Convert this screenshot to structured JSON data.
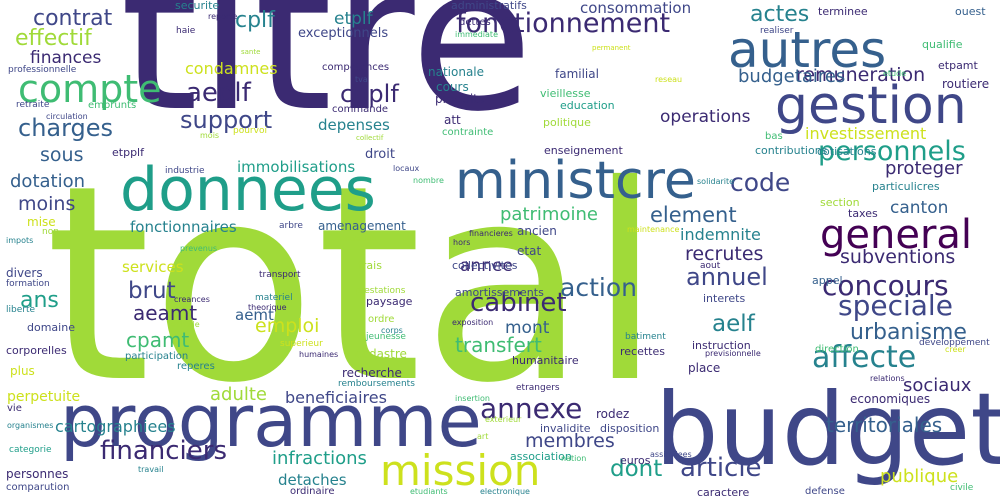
{
  "colors": {
    "background": "#ffffff",
    "green": "#7ad151",
    "purple": "#440154",
    "indigo": "#3b2a72",
    "navy": "#3f4788",
    "blue": "#35608d",
    "teal": "#26828e",
    "seagreen": "#1f9e89",
    "mint": "#3fbc73",
    "yellow": "#cde11d",
    "lime": "#a0da39"
  },
  "words": [
    {
      "text": "total",
      "color": "lime"
    },
    {
      "text": "titre",
      "color": "indigo"
    },
    {
      "text": "budget",
      "color": "navy"
    },
    {
      "text": "programme",
      "color": "navy"
    },
    {
      "text": "donnees",
      "color": "seagreen"
    },
    {
      "text": "gestion",
      "color": "navy"
    },
    {
      "text": "autres",
      "color": "blue"
    },
    {
      "text": "ministcre",
      "color": "blue"
    },
    {
      "text": "mission",
      "color": "yellow"
    },
    {
      "text": "compte",
      "color": "mint"
    },
    {
      "text": "general",
      "color": "purple"
    },
    {
      "text": "concours",
      "color": "indigo"
    },
    {
      "text": "speciale",
      "color": "navy"
    },
    {
      "text": "affecte",
      "color": "teal"
    },
    {
      "text": "annexe",
      "color": "indigo"
    },
    {
      "text": "article",
      "color": "navy"
    },
    {
      "text": "financiers",
      "color": "indigo"
    },
    {
      "text": "fonctionnement",
      "color": "indigo"
    },
    {
      "text": "personnels",
      "color": "seagreen"
    },
    {
      "text": "code",
      "color": "navy"
    },
    {
      "text": "cabinet",
      "color": "indigo"
    },
    {
      "text": "annuel",
      "color": "navy"
    },
    {
      "text": "action",
      "color": "blue"
    },
    {
      "text": "urbanisme",
      "color": "blue"
    },
    {
      "text": "charges",
      "color": "blue"
    },
    {
      "text": "aeplf",
      "color": "indigo"
    },
    {
      "text": "cpplf",
      "color": "indigo"
    },
    {
      "text": "support",
      "color": "navy"
    },
    {
      "text": "contrat",
      "color": "navy"
    },
    {
      "text": "effectif",
      "color": "lime"
    },
    {
      "text": "cplf",
      "color": "teal"
    },
    {
      "text": "etplf",
      "color": "teal"
    },
    {
      "text": "actes",
      "color": "teal"
    },
    {
      "text": "remuneration",
      "color": "indigo"
    },
    {
      "text": "budgetaires",
      "color": "blue"
    },
    {
      "text": "finances",
      "color": "indigo"
    },
    {
      "text": "sous",
      "color": "blue"
    },
    {
      "text": "moins",
      "color": "navy"
    },
    {
      "text": "dotation",
      "color": "blue"
    },
    {
      "text": "ans",
      "color": "seagreen"
    },
    {
      "text": "brut",
      "color": "navy"
    },
    {
      "text": "aeamt",
      "color": "indigo"
    },
    {
      "text": "cpamt",
      "color": "mint"
    },
    {
      "text": "emploi",
      "color": "yellow"
    },
    {
      "text": "aelf",
      "color": "teal"
    },
    {
      "text": "membres",
      "color": "navy"
    },
    {
      "text": "dont",
      "color": "seagreen"
    },
    {
      "text": "transfert",
      "color": "mint"
    },
    {
      "text": "mont",
      "color": "blue"
    },
    {
      "text": "patrimoine",
      "color": "mint"
    },
    {
      "text": "element",
      "color": "blue"
    },
    {
      "text": "canton",
      "color": "blue"
    },
    {
      "text": "subventions",
      "color": "indigo"
    },
    {
      "text": "recrutes",
      "color": "indigo"
    },
    {
      "text": "indemnite",
      "color": "teal"
    },
    {
      "text": "annee",
      "color": "indigo"
    },
    {
      "text": "proteger",
      "color": "indigo"
    },
    {
      "text": "sociaux",
      "color": "indigo"
    },
    {
      "text": "territoriales",
      "color": "blue"
    },
    {
      "text": "infractions",
      "color": "seagreen"
    },
    {
      "text": "publique",
      "color": "yellow"
    },
    {
      "text": "beneficiaires",
      "color": "navy"
    },
    {
      "text": "adulte",
      "color": "lime"
    },
    {
      "text": "cartographiees",
      "color": "teal"
    },
    {
      "text": "condamnes",
      "color": "yellow"
    },
    {
      "text": "immobilisations",
      "color": "seagreen"
    },
    {
      "text": "investissement",
      "color": "yellow"
    },
    {
      "text": "operations",
      "color": "indigo"
    },
    {
      "text": "consommation",
      "color": "navy"
    },
    {
      "text": "depenses",
      "color": "teal"
    },
    {
      "text": "fonctionnaires",
      "color": "teal"
    },
    {
      "text": "services",
      "color": "yellow"
    },
    {
      "text": "detaches",
      "color": "teal"
    },
    {
      "text": "exceptionnels",
      "color": "navy"
    },
    {
      "text": "securite",
      "color": "teal"
    },
    {
      "text": "administratifs",
      "color": "navy"
    },
    {
      "text": "terminee",
      "color": "indigo"
    },
    {
      "text": "ouest",
      "color": "blue"
    },
    {
      "text": "etpamt",
      "color": "indigo"
    },
    {
      "text": "routiere",
      "color": "indigo"
    },
    {
      "text": "qualifie",
      "color": "mint"
    },
    {
      "text": "particulicres",
      "color": "teal"
    },
    {
      "text": "cotisations",
      "color": "teal"
    },
    {
      "text": "contributions",
      "color": "teal"
    },
    {
      "text": "section",
      "color": "lime"
    },
    {
      "text": "taxes",
      "color": "indigo"
    },
    {
      "text": "appel",
      "color": "blue"
    },
    {
      "text": "interets",
      "color": "navy"
    },
    {
      "text": "instruction",
      "color": "indigo"
    },
    {
      "text": "recettes",
      "color": "indigo"
    },
    {
      "text": "place",
      "color": "indigo"
    },
    {
      "text": "economiques",
      "color": "indigo"
    },
    {
      "text": "direction",
      "color": "mint"
    },
    {
      "text": "developpement",
      "color": "navy"
    },
    {
      "text": "rodez",
      "color": "indigo"
    },
    {
      "text": "disposition",
      "color": "navy"
    },
    {
      "text": "invalidite",
      "color": "navy"
    },
    {
      "text": "humanitaire",
      "color": "indigo"
    },
    {
      "text": "association",
      "color": "seagreen"
    },
    {
      "text": "euros",
      "color": "indigo"
    },
    {
      "text": "caractere",
      "color": "indigo"
    },
    {
      "text": "defense",
      "color": "navy"
    },
    {
      "text": "civile",
      "color": "mint"
    },
    {
      "text": "cadastre",
      "color": "lime"
    },
    {
      "text": "recherche",
      "color": "indigo"
    },
    {
      "text": "paysage",
      "color": "indigo"
    },
    {
      "text": "frais",
      "color": "lime"
    },
    {
      "text": "collectivites",
      "color": "navy"
    },
    {
      "text": "amortissements",
      "color": "navy"
    },
    {
      "text": "etat",
      "color": "navy"
    },
    {
      "text": "ancien",
      "color": "navy"
    },
    {
      "text": "enseignement",
      "color": "indigo"
    },
    {
      "text": "politique",
      "color": "lime"
    },
    {
      "text": "education",
      "color": "seagreen"
    },
    {
      "text": "vieillesse",
      "color": "mint"
    },
    {
      "text": "familial",
      "color": "navy"
    },
    {
      "text": "produits",
      "color": "indigo"
    },
    {
      "text": "cours",
      "color": "teal"
    },
    {
      "text": "nationale",
      "color": "teal"
    },
    {
      "text": "att",
      "color": "indigo"
    },
    {
      "text": "contrainte",
      "color": "mint"
    },
    {
      "text": "competences",
      "color": "indigo"
    },
    {
      "text": "commande",
      "color": "indigo"
    },
    {
      "text": "droit",
      "color": "navy"
    },
    {
      "text": "aemt",
      "color": "blue"
    },
    {
      "text": "amenagement",
      "color": "blue"
    },
    {
      "text": "etpplf",
      "color": "indigo"
    },
    {
      "text": "divers",
      "color": "navy"
    },
    {
      "text": "formation",
      "color": "navy"
    },
    {
      "text": "domaine",
      "color": "navy"
    },
    {
      "text": "corporelles",
      "color": "indigo"
    },
    {
      "text": "plus",
      "color": "yellow"
    },
    {
      "text": "perpetuite",
      "color": "yellow"
    },
    {
      "text": "vie",
      "color": "indigo"
    },
    {
      "text": "categorie",
      "color": "seagreen"
    },
    {
      "text": "personnes",
      "color": "indigo"
    },
    {
      "text": "comparution",
      "color": "navy"
    },
    {
      "text": "ordinaire",
      "color": "indigo"
    },
    {
      "text": "emprunts",
      "color": "mint"
    },
    {
      "text": "retraite",
      "color": "navy"
    },
    {
      "text": "professionnelle",
      "color": "navy"
    },
    {
      "text": "haie",
      "color": "indigo"
    },
    {
      "text": "reporte",
      "color": "indigo"
    },
    {
      "text": "dettes",
      "color": "indigo"
    },
    {
      "text": "immediate",
      "color": "mint"
    },
    {
      "text": "realiser",
      "color": "navy"
    },
    {
      "text": "sante",
      "color": "lime"
    },
    {
      "text": "permanent",
      "color": "yellow"
    },
    {
      "text": "tva",
      "color": "navy"
    },
    {
      "text": "reseau",
      "color": "yellow"
    },
    {
      "text": "etude",
      "color": "mint"
    },
    {
      "text": "circulation",
      "color": "navy"
    },
    {
      "text": "mois",
      "color": "lime"
    },
    {
      "text": "pourvoi",
      "color": "yellow"
    },
    {
      "text": "collectif",
      "color": "lime"
    },
    {
      "text": "bas",
      "color": "mint"
    },
    {
      "text": "solidarite",
      "color": "teal"
    },
    {
      "text": "industrie",
      "color": "navy"
    },
    {
      "text": "locaux",
      "color": "navy"
    },
    {
      "text": "nombre",
      "color": "mint"
    },
    {
      "text": "mise",
      "color": "yellow"
    },
    {
      "text": "non",
      "color": "lime"
    },
    {
      "text": "impots",
      "color": "teal"
    },
    {
      "text": "arbre",
      "color": "navy"
    },
    {
      "text": "prevenus",
      "color": "mint"
    },
    {
      "text": "entretien",
      "color": "lime"
    },
    {
      "text": "financieres",
      "color": "indigo"
    },
    {
      "text": "maintenance",
      "color": "yellow"
    },
    {
      "text": "hors",
      "color": "indigo"
    },
    {
      "text": "aout",
      "color": "indigo"
    },
    {
      "text": "transport",
      "color": "indigo"
    },
    {
      "text": "creances",
      "color": "indigo"
    },
    {
      "text": "materiel",
      "color": "teal"
    },
    {
      "text": "theorique",
      "color": "indigo"
    },
    {
      "text": "prestations",
      "color": "lime"
    },
    {
      "text": "liberte",
      "color": "teal"
    },
    {
      "text": "echelle",
      "color": "lime"
    },
    {
      "text": "ordre",
      "color": "lime"
    },
    {
      "text": "corps",
      "color": "teal"
    },
    {
      "text": "jeunesse",
      "color": "mint"
    },
    {
      "text": "superieur",
      "color": "yellow"
    },
    {
      "text": "humaines",
      "color": "indigo"
    },
    {
      "text": "participation",
      "color": "teal"
    },
    {
      "text": "exposition",
      "color": "indigo"
    },
    {
      "text": "batiment",
      "color": "teal"
    },
    {
      "text": "previsionnelle",
      "color": "indigo"
    },
    {
      "text": "creer",
      "color": "yellow"
    },
    {
      "text": "relations",
      "color": "indigo"
    },
    {
      "text": "reperes",
      "color": "teal"
    },
    {
      "text": "remboursements",
      "color": "teal"
    },
    {
      "text": "etrangers",
      "color": "indigo"
    },
    {
      "text": "insertion",
      "color": "mint"
    },
    {
      "text": "exterieur",
      "color": "lime"
    },
    {
      "text": "organismes",
      "color": "teal"
    },
    {
      "text": "art",
      "color": "lime"
    },
    {
      "text": "assimilees",
      "color": "navy"
    },
    {
      "text": "travail",
      "color": "teal"
    },
    {
      "text": "nation",
      "color": "mint"
    },
    {
      "text": "etudiants",
      "color": "mint"
    },
    {
      "text": "electronique",
      "color": "teal"
    }
  ]
}
